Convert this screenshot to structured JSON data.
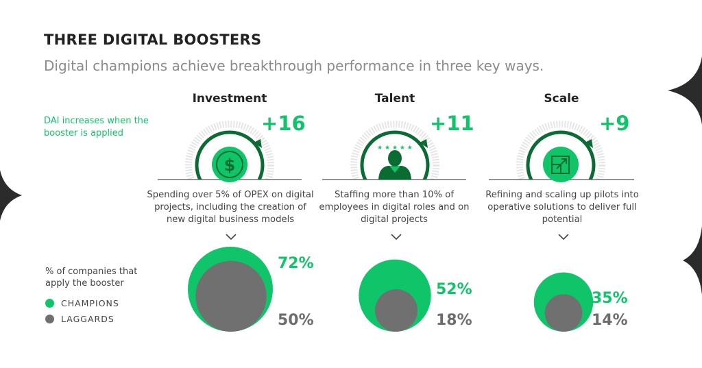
{
  "header": {
    "title": "THREE DIGITAL BOOSTERS",
    "subtitle": "Digital champions achieve breakthrough performance in three key ways."
  },
  "notes": {
    "dai_increase": "DAI increases when the booster is applied",
    "share_label": "% of companies that apply the booster"
  },
  "legend": {
    "champions": "CHAMPIONS",
    "laggards": "LAGGARDS"
  },
  "colors": {
    "champions": "#10c469",
    "laggards": "#707070",
    "accent_dark": "#0a6b33",
    "text_dark": "#222222"
  },
  "boosters": [
    {
      "name": "Investment",
      "dai": "+16",
      "icon": "dollar-icon",
      "description": "Spending over 5% of OPEX on digital projects, including the creation of new digital business models"
    },
    {
      "name": "Talent",
      "dai": "+11",
      "icon": "person-stars-icon",
      "description": "Staffing more than 10% of employees in digital roles and on digital projects"
    },
    {
      "name": "Scale",
      "dai": "+9",
      "icon": "expand-arrow-icon",
      "description": "Refining and scaling up pilots into operative solutions to deliver full potential"
    }
  ],
  "chart_data": {
    "type": "bubble",
    "categories": [
      "Investment",
      "Talent",
      "Scale"
    ],
    "series": [
      {
        "name": "CHAMPIONS",
        "values": [
          72,
          52,
          35
        ],
        "labels": [
          "72%",
          "52%",
          "35%"
        ]
      },
      {
        "name": "LAGGARDS",
        "values": [
          50,
          18,
          14
        ],
        "labels": [
          "50%",
          "18%",
          "14%"
        ]
      }
    ],
    "dai_increase": [
      16,
      11,
      9
    ]
  }
}
